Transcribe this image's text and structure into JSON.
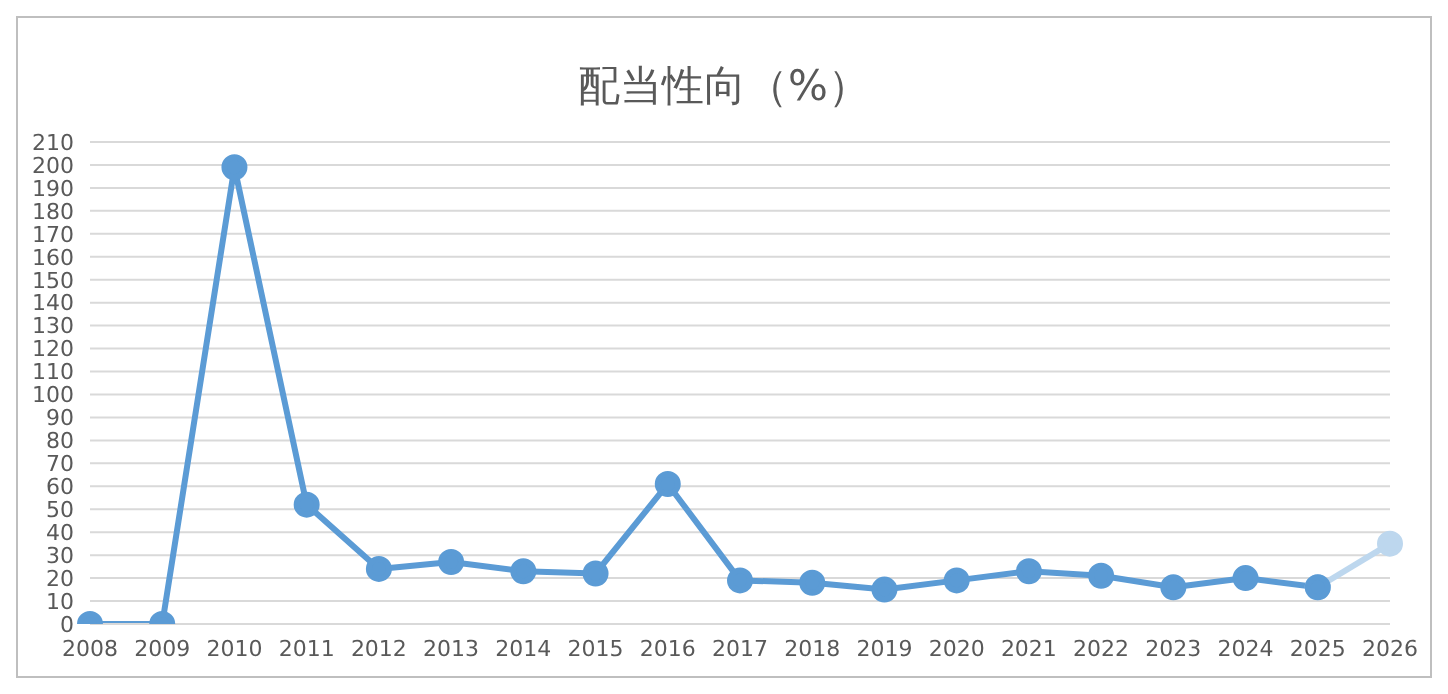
{
  "chart_data": {
    "type": "line",
    "title": "配当性向（%）",
    "categories": [
      "2008",
      "2009",
      "2010",
      "2011",
      "2012",
      "2013",
      "2014",
      "2015",
      "2016",
      "2017",
      "2018",
      "2019",
      "2020",
      "2021",
      "2022",
      "2023",
      "2024",
      "2025",
      "2026"
    ],
    "series": [
      {
        "color": "#5b9bd5",
        "values": [
          0,
          0,
          199,
          52,
          24,
          27,
          23,
          22,
          61,
          19,
          18,
          15,
          19,
          23,
          21,
          16,
          20,
          16,
          null
        ]
      },
      {
        "color": "#bdd7ee",
        "values": [
          null,
          null,
          null,
          null,
          null,
          null,
          null,
          null,
          null,
          null,
          null,
          null,
          null,
          null,
          null,
          null,
          null,
          16,
          35
        ]
      }
    ],
    "ylim": [
      0,
      210
    ],
    "yticks": [
      0,
      10,
      20,
      30,
      40,
      50,
      60,
      70,
      80,
      90,
      100,
      110,
      120,
      130,
      140,
      150,
      160,
      170,
      180,
      190,
      200,
      210
    ],
    "grid": "y",
    "legend": false,
    "marker": "circle",
    "line_style": "solid"
  }
}
